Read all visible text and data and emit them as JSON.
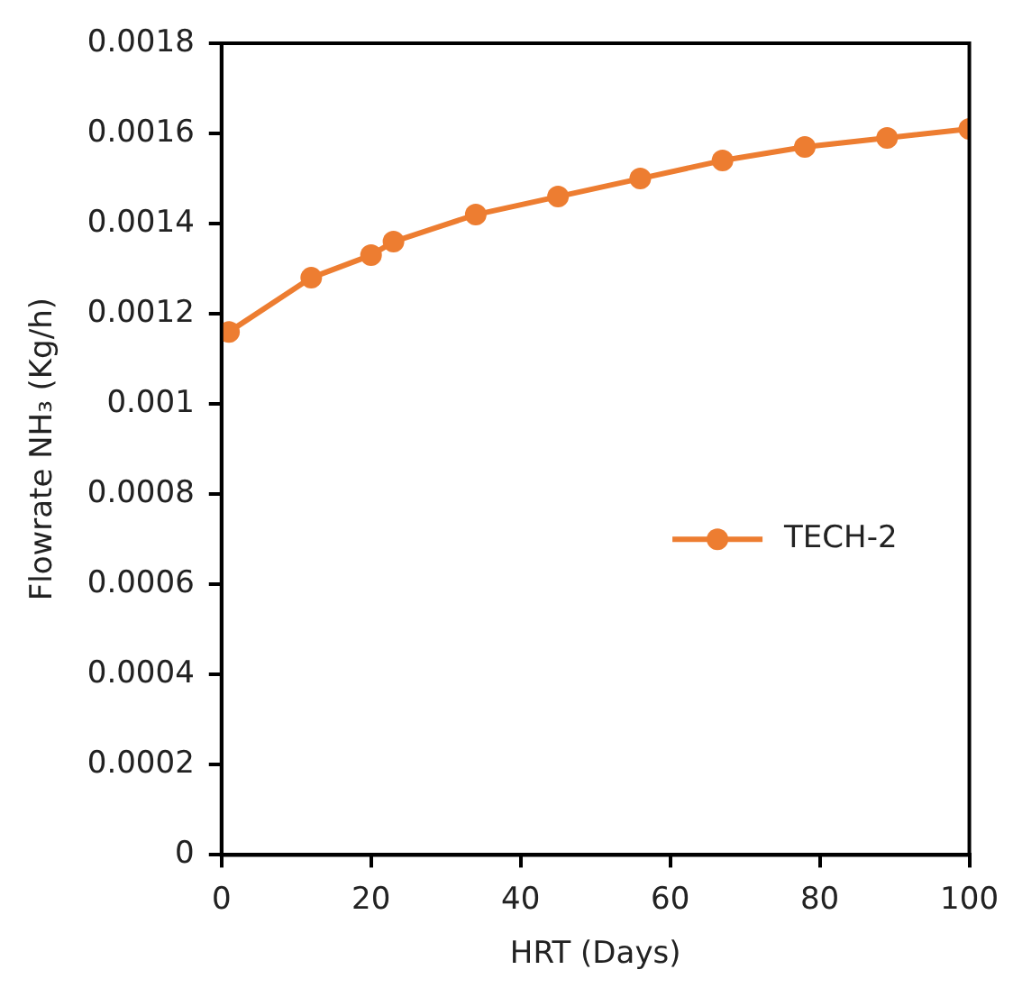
{
  "chart_data": {
    "type": "line",
    "xlabel": "HRT (Days)",
    "ylabel": "Flowrate NH₃ (Kg/h)",
    "x": [
      1,
      12,
      20,
      23,
      34,
      45,
      56,
      67,
      78,
      89,
      100
    ],
    "series": [
      {
        "name": "TECH-2",
        "color": "#ed7d31",
        "values": [
          0.00116,
          0.00128,
          0.00133,
          0.00136,
          0.00142,
          0.00146,
          0.0015,
          0.00154,
          0.00157,
          0.00159,
          0.00161
        ]
      }
    ],
    "xlim": [
      0,
      100
    ],
    "xticks": [
      0,
      20,
      40,
      60,
      80,
      100
    ],
    "ylim": [
      0,
      0.0018
    ],
    "yticks": [
      0,
      0.0002,
      0.0004,
      0.0006,
      0.0008,
      0.001,
      0.0012,
      0.0014,
      0.0016,
      0.0018
    ],
    "grid": false,
    "legend": "right",
    "marker": "circle",
    "line_style": "solid"
  }
}
